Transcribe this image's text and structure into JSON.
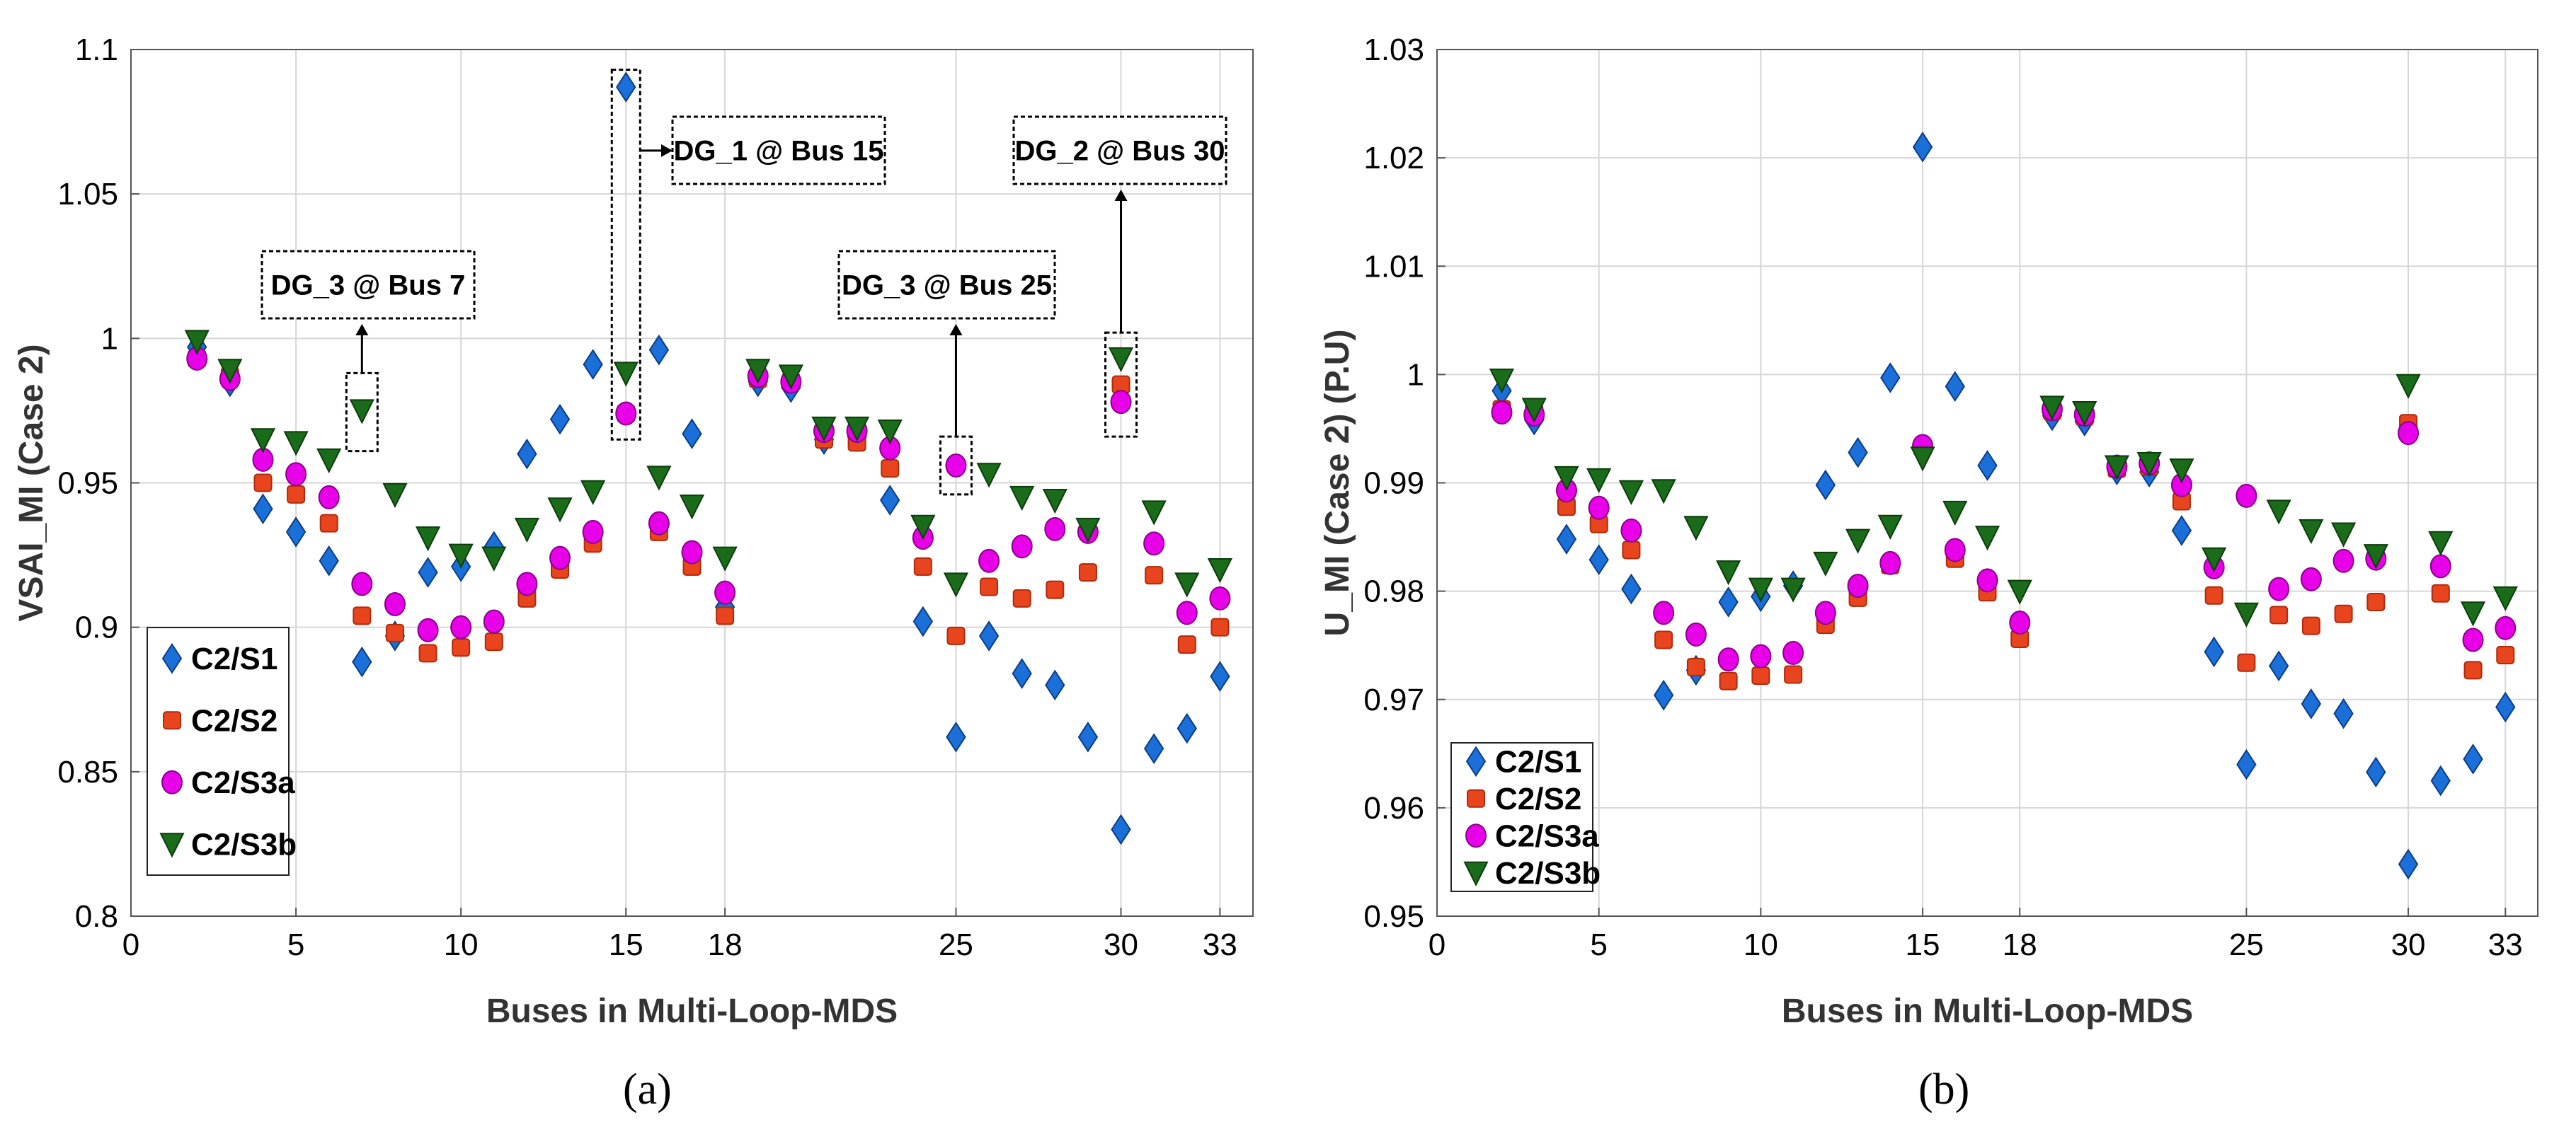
{
  "chart_data": [
    {
      "type": "scatter",
      "panel_label": "(a)",
      "ylabel": "VSAI_MI (Case 2)",
      "xlabel": "Buses in Multi-Loop-MDS",
      "xlim": [
        0,
        34
      ],
      "ylim": [
        0.8,
        1.1
      ],
      "xticks": [
        0,
        5,
        10,
        15,
        18,
        25,
        30,
        33
      ],
      "yticks": [
        0.8,
        0.85,
        0.9,
        0.95,
        1.0,
        1.05,
        1.1
      ],
      "ytick_labels": [
        "0.8",
        "0.85",
        "0.9",
        "0.95",
        "1",
        "1.05",
        "1.1"
      ],
      "grid": true,
      "legend_position": "bottom-left",
      "x": [
        2,
        3,
        4,
        5,
        6,
        7,
        8,
        9,
        10,
        11,
        12,
        13,
        14,
        15,
        16,
        17,
        18,
        19,
        20,
        21,
        22,
        23,
        24,
        25,
        26,
        27,
        28,
        29,
        30,
        31,
        32,
        33
      ],
      "series": [
        {
          "name": "C2/S1",
          "marker": "diamond",
          "color": "#1a6fd8",
          "values": [
            0.997,
            0.985,
            0.941,
            0.933,
            0.923,
            0.888,
            0.897,
            0.919,
            0.921,
            0.928,
            0.96,
            0.972,
            0.991,
            1.087,
            0.996,
            0.967,
            0.907,
            0.985,
            0.983,
            0.965,
            0.966,
            0.944,
            0.902,
            0.862,
            0.897,
            0.884,
            0.88,
            0.862,
            0.83,
            0.858,
            0.865,
            0.883
          ]
        },
        {
          "name": "C2/S2",
          "marker": "square",
          "color": "#e8451e",
          "values": [
            0.993,
            0.987,
            0.95,
            0.946,
            0.936,
            0.904,
            0.898,
            0.891,
            0.893,
            0.895,
            0.91,
            0.92,
            0.929,
            0.974,
            0.933,
            0.921,
            0.904,
            0.986,
            0.985,
            0.965,
            0.964,
            0.955,
            0.921,
            0.897,
            0.914,
            0.91,
            0.913,
            0.919,
            0.984,
            0.918,
            0.894,
            0.9
          ]
        },
        {
          "name": "C2/S3a",
          "marker": "circle",
          "color": "#e800e8",
          "values": [
            0.993,
            0.986,
            0.958,
            0.953,
            0.945,
            0.915,
            0.908,
            0.899,
            0.9,
            0.902,
            0.915,
            0.924,
            0.933,
            0.974,
            0.936,
            0.926,
            0.912,
            0.987,
            0.985,
            0.968,
            0.968,
            0.962,
            0.931,
            0.956,
            0.923,
            0.928,
            0.934,
            0.933,
            0.978,
            0.929,
            0.905,
            0.91
          ]
        },
        {
          "name": "C2/S3b",
          "marker": "triangle-down",
          "color": "#1a6b1a",
          "values": [
            0.999,
            0.989,
            0.965,
            0.964,
            0.958,
            0.975,
            0.946,
            0.931,
            0.925,
            0.924,
            0.934,
            0.941,
            0.947,
            0.988,
            0.952,
            0.942,
            0.924,
            0.989,
            0.987,
            0.969,
            0.969,
            0.968,
            0.935,
            0.915,
            0.953,
            0.945,
            0.944,
            0.934,
            0.993,
            0.94,
            0.915,
            0.92
          ]
        }
      ],
      "annotations": [
        {
          "text": "DG_3 @ Bus 7",
          "bus": 7
        },
        {
          "text": "DG_1 @ Bus 15",
          "bus": 15
        },
        {
          "text": "DG_3 @ Bus 25",
          "bus": 25
        },
        {
          "text": "DG_2 @ Bus 30",
          "bus": 30
        }
      ]
    },
    {
      "type": "scatter",
      "panel_label": "(b)",
      "ylabel": "U_MI (Case 2) (P.U)",
      "xlabel": "Buses in Multi-Loop-MDS",
      "xlim": [
        0,
        34
      ],
      "ylim": [
        0.95,
        1.03
      ],
      "xticks": [
        0,
        5,
        10,
        15,
        18,
        25,
        30,
        33
      ],
      "yticks": [
        0.95,
        0.96,
        0.97,
        0.98,
        0.99,
        1.0,
        1.01,
        1.02,
        1.03
      ],
      "ytick_labels": [
        "0.95",
        "0.96",
        "0.97",
        "0.98",
        "0.99",
        "1",
        "1.01",
        "1.02",
        "1.03"
      ],
      "grid": true,
      "legend_position": "bottom-left",
      "x": [
        2,
        3,
        4,
        5,
        6,
        7,
        8,
        9,
        10,
        11,
        12,
        13,
        14,
        15,
        16,
        17,
        18,
        19,
        20,
        21,
        22,
        23,
        24,
        25,
        26,
        27,
        28,
        29,
        30,
        31,
        32,
        33
      ],
      "series": [
        {
          "name": "C2/S1",
          "marker": "diamond",
          "color": "#1a6fd8",
          "values": [
            0.9985,
            0.9958,
            0.9848,
            0.9829,
            0.9802,
            0.9704,
            0.9727,
            0.979,
            0.9795,
            0.9805,
            0.9898,
            0.9928,
            0.9997,
            1.021,
            0.9989,
            0.9916,
            0.9768,
            0.9962,
            0.9957,
            0.9912,
            0.991,
            0.9856,
            0.9744,
            0.964,
            0.9731,
            0.9696,
            0.9687,
            0.9633,
            0.9548,
            0.9625,
            0.9645,
            0.9693
          ]
        },
        {
          "name": "C2/S2",
          "marker": "square",
          "color": "#e8451e",
          "values": [
            0.9968,
            0.9965,
            0.9878,
            0.9862,
            0.9838,
            0.9755,
            0.973,
            0.9717,
            0.9722,
            0.9723,
            0.9769,
            0.9794,
            0.9824,
            0.9933,
            0.983,
            0.9799,
            0.9756,
            0.9966,
            0.9961,
            0.9913,
            0.9915,
            0.9883,
            0.9796,
            0.9734,
            0.9778,
            0.9768,
            0.9779,
            0.979,
            0.9955,
            0.9798,
            0.9727,
            0.9741
          ]
        },
        {
          "name": "C2/S3a",
          "marker": "circle",
          "color": "#e800e8",
          "values": [
            0.9965,
            0.9963,
            0.9893,
            0.9877,
            0.9856,
            0.978,
            0.976,
            0.9737,
            0.974,
            0.9743,
            0.978,
            0.9805,
            0.9826,
            0.9934,
            0.9838,
            0.981,
            0.9771,
            0.9968,
            0.9963,
            0.9915,
            0.9918,
            0.9898,
            0.9822,
            0.9888,
            0.9802,
            0.9811,
            0.9828,
            0.983,
            0.9946,
            0.9823,
            0.9755,
            0.9766
          ]
        },
        {
          "name": "C2/S3b",
          "marker": "triangle-down",
          "color": "#1a6b1a",
          "values": [
            0.9995,
            0.9968,
            0.9905,
            0.9903,
            0.9892,
            0.9893,
            0.9859,
            0.9818,
            0.9802,
            0.9802,
            0.9826,
            0.9847,
            0.986,
            0.9923,
            0.9873,
            0.985,
            0.98,
            0.997,
            0.9965,
            0.9915,
            0.9918,
            0.9912,
            0.983,
            0.9779,
            0.9874,
            0.9856,
            0.9853,
            0.9833,
            0.999,
            0.9845,
            0.978,
            0.9794
          ]
        }
      ],
      "annotations": []
    }
  ]
}
